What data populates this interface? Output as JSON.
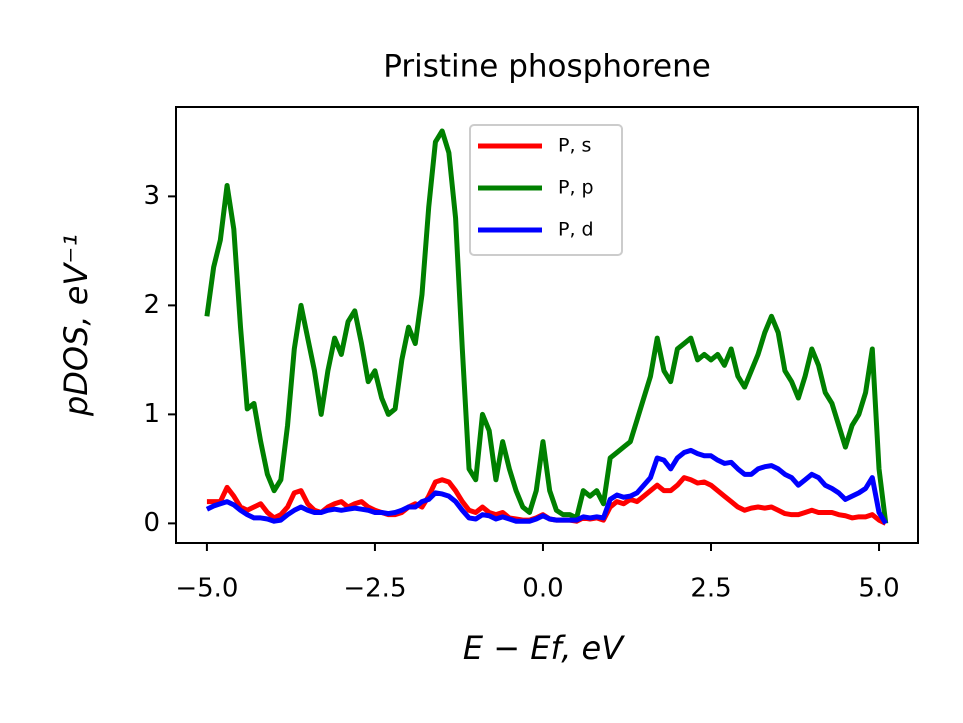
{
  "chart_data": {
    "type": "line",
    "title": "Pristine phosphorene",
    "x_label": "E − Ef, eV",
    "y_label": "pDOS, eV⁻¹",
    "x": [
      -5.0,
      -4.9,
      -4.8,
      -4.7,
      -4.6,
      -4.5,
      -4.4,
      -4.3,
      -4.2,
      -4.1,
      -4.0,
      -3.9,
      -3.8,
      -3.7,
      -3.6,
      -3.5,
      -3.4,
      -3.3,
      -3.2,
      -3.1,
      -3.0,
      -2.9,
      -2.8,
      -2.7,
      -2.6,
      -2.5,
      -2.4,
      -2.3,
      -2.2,
      -2.1,
      -2.0,
      -1.9,
      -1.8,
      -1.7,
      -1.6,
      -1.5,
      -1.4,
      -1.3,
      -1.2,
      -1.1,
      -1.0,
      -0.9,
      -0.8,
      -0.7,
      -0.6,
      -0.5,
      -0.4,
      -0.3,
      -0.2,
      -0.1,
      0.0,
      0.1,
      0.2,
      0.3,
      0.4,
      0.5,
      0.6,
      0.7,
      0.8,
      0.9,
      1.0,
      1.1,
      1.2,
      1.3,
      1.4,
      1.5,
      1.6,
      1.7,
      1.8,
      1.9,
      2.0,
      2.1,
      2.2,
      2.3,
      2.4,
      2.5,
      2.6,
      2.7,
      2.8,
      2.9,
      3.0,
      3.1,
      3.2,
      3.3,
      3.4,
      3.5,
      3.6,
      3.7,
      3.8,
      3.9,
      4.0,
      4.1,
      4.2,
      4.3,
      4.4,
      4.5,
      4.6,
      4.7,
      4.8,
      4.9,
      5.0,
      5.1
    ],
    "series": [
      {
        "name": "P, s",
        "color": "#ff0000",
        "values": [
          0.2,
          0.2,
          0.2,
          0.33,
          0.25,
          0.15,
          0.12,
          0.15,
          0.18,
          0.1,
          0.05,
          0.08,
          0.15,
          0.28,
          0.3,
          0.18,
          0.12,
          0.1,
          0.15,
          0.18,
          0.2,
          0.15,
          0.18,
          0.2,
          0.15,
          0.12,
          0.1,
          0.08,
          0.08,
          0.1,
          0.15,
          0.18,
          0.15,
          0.25,
          0.38,
          0.4,
          0.38,
          0.3,
          0.2,
          0.12,
          0.1,
          0.15,
          0.1,
          0.08,
          0.1,
          0.05,
          0.04,
          0.03,
          0.03,
          0.05,
          0.08,
          0.04,
          0.03,
          0.03,
          0.03,
          0.02,
          0.05,
          0.04,
          0.05,
          0.03,
          0.15,
          0.2,
          0.18,
          0.22,
          0.2,
          0.25,
          0.3,
          0.35,
          0.3,
          0.3,
          0.35,
          0.42,
          0.4,
          0.37,
          0.38,
          0.35,
          0.3,
          0.25,
          0.2,
          0.15,
          0.12,
          0.14,
          0.15,
          0.14,
          0.15,
          0.12,
          0.09,
          0.08,
          0.08,
          0.1,
          0.12,
          0.1,
          0.1,
          0.1,
          0.08,
          0.07,
          0.05,
          0.06,
          0.06,
          0.08,
          0.03,
          0.0
        ]
      },
      {
        "name": "P, p",
        "color": "#008000",
        "values": [
          1.9,
          2.35,
          2.6,
          3.1,
          2.7,
          1.8,
          1.05,
          1.1,
          0.75,
          0.45,
          0.3,
          0.4,
          0.9,
          1.6,
          2.0,
          1.7,
          1.4,
          1.0,
          1.4,
          1.7,
          1.55,
          1.85,
          1.95,
          1.65,
          1.3,
          1.4,
          1.15,
          1.0,
          1.05,
          1.5,
          1.8,
          1.65,
          2.1,
          2.9,
          3.5,
          3.6,
          3.4,
          2.8,
          1.6,
          0.5,
          0.4,
          1.0,
          0.85,
          0.4,
          0.75,
          0.5,
          0.3,
          0.15,
          0.1,
          0.3,
          0.75,
          0.3,
          0.12,
          0.08,
          0.08,
          0.05,
          0.3,
          0.25,
          0.3,
          0.18,
          0.6,
          0.65,
          0.7,
          0.75,
          0.95,
          1.15,
          1.35,
          1.7,
          1.4,
          1.3,
          1.6,
          1.65,
          1.7,
          1.5,
          1.55,
          1.5,
          1.55,
          1.45,
          1.6,
          1.35,
          1.25,
          1.4,
          1.55,
          1.75,
          1.9,
          1.75,
          1.4,
          1.3,
          1.15,
          1.35,
          1.6,
          1.45,
          1.2,
          1.1,
          0.9,
          0.7,
          0.9,
          1.0,
          1.2,
          1.6,
          0.5,
          0.0
        ]
      },
      {
        "name": "P, d",
        "color": "#0000ff",
        "values": [
          0.13,
          0.16,
          0.18,
          0.2,
          0.17,
          0.12,
          0.08,
          0.05,
          0.05,
          0.04,
          0.02,
          0.03,
          0.08,
          0.12,
          0.15,
          0.12,
          0.1,
          0.1,
          0.12,
          0.13,
          0.12,
          0.13,
          0.14,
          0.13,
          0.12,
          0.1,
          0.1,
          0.09,
          0.1,
          0.12,
          0.15,
          0.15,
          0.2,
          0.22,
          0.28,
          0.27,
          0.25,
          0.2,
          0.12,
          0.05,
          0.04,
          0.08,
          0.07,
          0.04,
          0.06,
          0.04,
          0.02,
          0.02,
          0.02,
          0.04,
          0.07,
          0.04,
          0.03,
          0.03,
          0.03,
          0.03,
          0.06,
          0.05,
          0.06,
          0.05,
          0.22,
          0.26,
          0.24,
          0.25,
          0.28,
          0.35,
          0.42,
          0.6,
          0.58,
          0.5,
          0.6,
          0.65,
          0.67,
          0.64,
          0.62,
          0.62,
          0.58,
          0.55,
          0.56,
          0.5,
          0.45,
          0.45,
          0.5,
          0.52,
          0.53,
          0.5,
          0.45,
          0.42,
          0.35,
          0.4,
          0.45,
          0.42,
          0.35,
          0.32,
          0.28,
          0.22,
          0.25,
          0.28,
          0.32,
          0.42,
          0.1,
          0.0
        ]
      }
    ],
    "xlim": [
      -5.46,
      5.58
    ],
    "ylim": [
      -0.18,
      3.82
    ],
    "xticks": [
      {
        "value": -5,
        "label": "−5.0"
      },
      {
        "value": -2.5,
        "label": "−2.5"
      },
      {
        "value": 0,
        "label": "0.0"
      },
      {
        "value": 2.5,
        "label": "2.5"
      },
      {
        "value": 5,
        "label": "5.0"
      }
    ],
    "yticks": [
      0,
      1,
      2,
      3
    ],
    "grid": false,
    "legend": "upper center"
  }
}
